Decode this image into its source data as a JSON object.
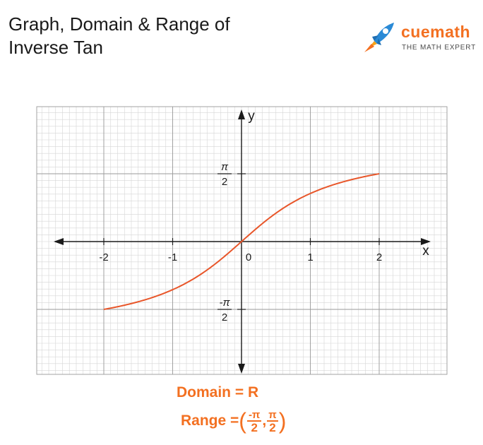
{
  "header": {
    "title_line1": "Graph, Domain & Range of",
    "title_line2": "Inverse Tan"
  },
  "brand": {
    "name": "cuemath",
    "tagline": "THE MATH EXPERT"
  },
  "chart_data": {
    "type": "line",
    "xlabel": "x",
    "ylabel": "y",
    "xlim": [
      -2,
      2
    ],
    "ylim": [
      -1.5708,
      1.5708
    ],
    "x_ticks": [
      {
        "value": -2,
        "label": "-2"
      },
      {
        "value": -1,
        "label": "-1"
      },
      {
        "value": 0,
        "label": "0"
      },
      {
        "value": 1,
        "label": "1"
      },
      {
        "value": 2,
        "label": "2"
      }
    ],
    "y_ticks": [
      {
        "value": 1.5708,
        "num": "π",
        "den": "2"
      },
      {
        "value": -1.5708,
        "num": "-π",
        "den": "2"
      }
    ],
    "grid": true,
    "series": [
      {
        "function": "arctan",
        "color": "#e8562a",
        "x": [
          -2,
          -1.75,
          -1.5,
          -1.25,
          -1,
          -0.75,
          -0.5,
          -0.25,
          0,
          0.25,
          0.5,
          0.75,
          1,
          1.25,
          1.5,
          1.75,
          2
        ],
        "y": [
          -1.5708,
          -1.5422,
          -1.4991,
          -1.4272,
          -1.2988,
          -1.0681,
          -0.6957,
          -0.2551,
          0,
          0.2551,
          0.6957,
          1.0681,
          1.2988,
          1.4272,
          1.4991,
          1.5422,
          1.5708
        ]
      }
    ]
  },
  "annotations": {
    "domain": "Domain = R",
    "range_label": "Range =",
    "open_paren": "(",
    "close_paren": ")",
    "comma": ",",
    "lower_num": "-π",
    "lower_den": "2",
    "upper_num": "π",
    "upper_den": "2"
  },
  "colors": {
    "accent": "#f37021",
    "curve": "#e8562a",
    "grid_minor": "#d6d6d6",
    "grid_major": "#9a9a9a",
    "axis": "#1a1a1a"
  }
}
